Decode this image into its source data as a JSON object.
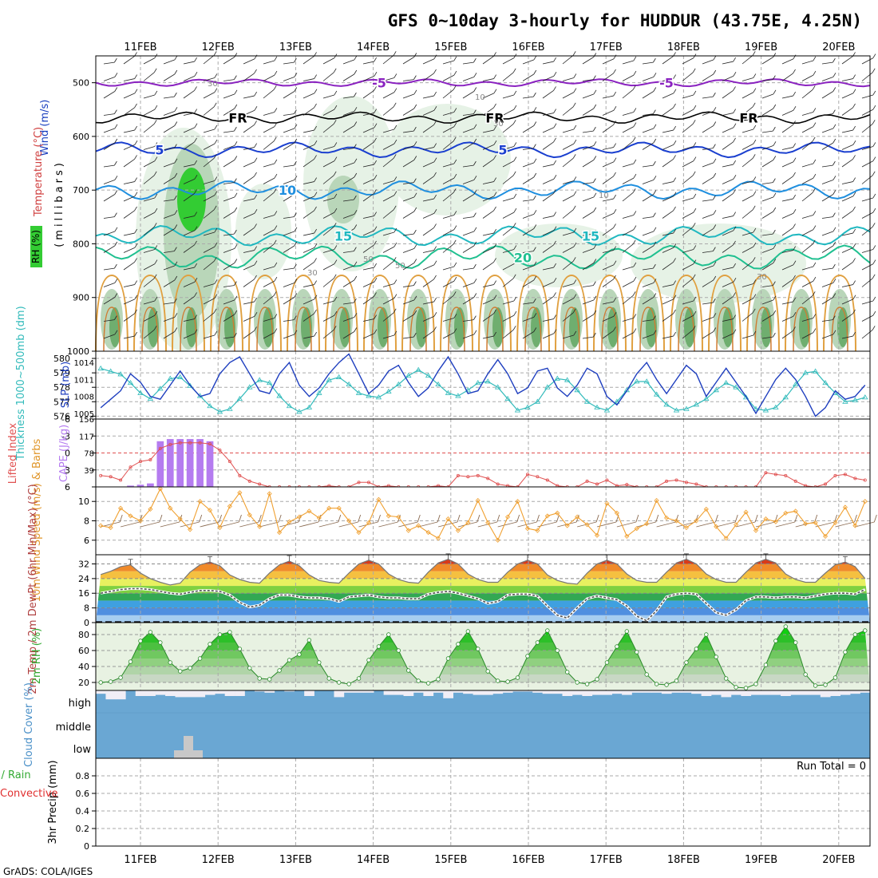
{
  "title": "GFS 0~10day 3-hourly for HUDDUR (43.75E, 4.25N)",
  "footer": "GrADS: COLA/IGES",
  "dates": [
    "11FEB",
    "12FEB",
    "13FEB",
    "14FEB",
    "15FEB",
    "16FEB",
    "17FEB",
    "18FEB",
    "19FEB",
    "20FEB"
  ],
  "colors": {
    "temp_grey": "#9a9a9a",
    "rh_light": "#e6f2e6",
    "rh_mid": "#b9d6b9",
    "rh_dark": "#6fae6f",
    "rh_bright": "#33cc33",
    "cloud_blue": "#6aa7d3",
    "cloud_white": "#f1eef6",
    "cape": "#b57cf0",
    "li": "#e05050",
    "wind_orange": "#f0a030",
    "barb_brown": "#8a6a50",
    "thick_cyan": "#33bbbb",
    "slp_blue": "#1f3fbf"
  },
  "chart_data": [
    {
      "panel": "upper-air",
      "type": "heatmap",
      "ylabels": [
        "Wind (m/s)",
        "Temperature (°C)",
        "RH (%)",
        "(millibars)"
      ],
      "yticks": [
        500,
        600,
        700,
        800,
        900,
        1000
      ],
      "ylim": [
        1000,
        450
      ],
      "isotherms": [
        {
          "label": "-5",
          "pressure": 500
        },
        {
          "label": "FR",
          "pressure": 565
        },
        {
          "label": "5",
          "pressure": 625
        },
        {
          "label": "10",
          "pressure": 700
        },
        {
          "label": "15",
          "pressure": 785
        },
        {
          "label": "20",
          "pressure": 825
        }
      ],
      "rh_labels": [
        "30",
        "10",
        "30",
        "10",
        "50",
        "30",
        "50",
        "30"
      ]
    },
    {
      "panel": "thickness-slp",
      "type": "line",
      "ylabel_left": "Thickness 1000~500mb (dm)",
      "ylabel_right": "SLP (mb)",
      "left_ticks": [
        576,
        577,
        578,
        579,
        580
      ],
      "right_ticks": [
        1005,
        1008,
        1011,
        1014
      ],
      "series": [
        {
          "name": "Thickness",
          "values": [
            579.3,
            579.1,
            578.9,
            578.3,
            577.6,
            577.2,
            577.9,
            578.6,
            578.7,
            578.1,
            577.4,
            576.7,
            576.3,
            576.5,
            577.2,
            578.0,
            578.5,
            578.3,
            577.4,
            576.7,
            576.3,
            576.6,
            577.6,
            578.5,
            578.7,
            578.2,
            577.6,
            577.4,
            577.3,
            577.7,
            578.2,
            578.8,
            579.2,
            578.8,
            578.2,
            577.6,
            577.4,
            577.8,
            578.3,
            578.4,
            578.0,
            577.2,
            576.4,
            576.6,
            577.0,
            578.0,
            578.6,
            578.5,
            577.8,
            577.0,
            576.6,
            576.4,
            577.0,
            577.8,
            578.4,
            578.4,
            577.5,
            576.8,
            576.4,
            576.5,
            576.8,
            577.2,
            577.8,
            578.3,
            578.0,
            577.3,
            576.5,
            576.4,
            576.6,
            577.3,
            578.2,
            579.0,
            579.1,
            578.3,
            577.6,
            577.0,
            577.1,
            577.3
          ]
        },
        {
          "name": "SLP",
          "values": [
            1006.0,
            1007.5,
            1009.0,
            1012.0,
            1010.5,
            1008.0,
            1007.5,
            1010.0,
            1012.5,
            1010.0,
            1008.0,
            1008.5,
            1012.0,
            1014.0,
            1015.0,
            1012.0,
            1009.0,
            1008.5,
            1012.0,
            1014.0,
            1010.0,
            1008.0,
            1009.5,
            1012.0,
            1014.0,
            1015.5,
            1012.0,
            1008.5,
            1010.0,
            1012.5,
            1013.5,
            1010.5,
            1008.0,
            1009.5,
            1012.5,
            1015.0,
            1012.0,
            1008.5,
            1009.0,
            1012.0,
            1014.5,
            1012.0,
            1008.5,
            1009.5,
            1012.5,
            1013.0,
            1009.5,
            1008.0,
            1010.0,
            1013.0,
            1012.0,
            1008.0,
            1006.5,
            1009.0,
            1012.0,
            1014.0,
            1011.0,
            1008.5,
            1011.0,
            1013.5,
            1012.0,
            1008.0,
            1010.5,
            1013.0,
            1010.5,
            1008.0,
            1005.0,
            1008.0,
            1011.0,
            1013.0,
            1011.0,
            1008.0,
            1004.5,
            1006.0,
            1009.0,
            1007.5,
            1008.0,
            1010.0
          ]
        }
      ]
    },
    {
      "panel": "li-cape",
      "type": "bar",
      "ylabel_left": "Lifted Index",
      "ylabel_right": "CAPE (J/kg)",
      "left_ticks": [
        "-6",
        "-3",
        "0",
        "3",
        "6"
      ],
      "right_ticks": [
        "39",
        "78",
        "117",
        "156"
      ],
      "cape_values": [
        0,
        0,
        0,
        3,
        5,
        8,
        105,
        110,
        110,
        110,
        110,
        105,
        0,
        0,
        0,
        0,
        0,
        0,
        0,
        0,
        0,
        0,
        0,
        0,
        0,
        0,
        0,
        0,
        0,
        0,
        0,
        0,
        0,
        0,
        2,
        0,
        0,
        0,
        0,
        0,
        0,
        0,
        0,
        0,
        0,
        0,
        0,
        0,
        0,
        0,
        0,
        0,
        0,
        0,
        0,
        0,
        0,
        0,
        0,
        0,
        0,
        0,
        0,
        0,
        0,
        0,
        0,
        0,
        0,
        0,
        0,
        0,
        0,
        0,
        0,
        0,
        0,
        0
      ],
      "li_values": [
        4.0,
        4.2,
        4.8,
        2.5,
        1.5,
        1.2,
        -0.8,
        -1.5,
        -1.8,
        -1.8,
        -1.8,
        -1.6,
        -0.5,
        1.5,
        4.0,
        5.0,
        5.5,
        6.0,
        6.0,
        6.0,
        6.0,
        6.0,
        6.0,
        5.8,
        6.0,
        6.0,
        5.2,
        5.2,
        6.0,
        5.8,
        6.0,
        6.0,
        6.0,
        6.0,
        5.8,
        6.0,
        4.0,
        4.2,
        4.0,
        4.5,
        5.5,
        5.8,
        6.0,
        3.8,
        4.2,
        4.8,
        5.8,
        6.0,
        6.0,
        5.0,
        5.5,
        4.8,
        5.8,
        5.6,
        6.0,
        6.0,
        6.0,
        5.0,
        4.8,
        5.2,
        5.5,
        6.0,
        6.0,
        6.0,
        6.0,
        6.0,
        6.0,
        3.5,
        3.8,
        4.0,
        5.0,
        5.8,
        6.0,
        5.5,
        4.0,
        3.8,
        4.5,
        4.8
      ]
    },
    {
      "panel": "10m-wind",
      "type": "line",
      "ylabel": "10m Wind Speed (m/s) & Barbs",
      "yticks": [
        6,
        8,
        10
      ],
      "ylim": [
        4.5,
        11.5
      ],
      "values": [
        7.5,
        7.3,
        9.3,
        8.5,
        8.0,
        9.2,
        11.3,
        9.3,
        8.2,
        7.1,
        10.0,
        9.1,
        7.3,
        9.5,
        10.9,
        8.6,
        7.4,
        10.8,
        6.8,
        7.9,
        8.4,
        9.0,
        8.3,
        9.3,
        9.3,
        8.0,
        6.8,
        7.8,
        10.2,
        8.5,
        8.4,
        7.0,
        7.5,
        6.8,
        6.2,
        8.2,
        7.0,
        7.8,
        10.1,
        7.8,
        6.0,
        8.4,
        10.0,
        7.2,
        7.0,
        8.5,
        8.8,
        7.5,
        8.4,
        7.6,
        6.5,
        9.8,
        8.8,
        6.4,
        7.2,
        7.7,
        10.1,
        8.3,
        8.0,
        7.3,
        8.0,
        9.2,
        7.4,
        6.2,
        7.6,
        8.9,
        7.0,
        8.2,
        7.9,
        8.8,
        9.0,
        7.7,
        7.8,
        6.4,
        7.8,
        9.4,
        7.5,
        10.0
      ]
    },
    {
      "panel": "2m-temp",
      "type": "area",
      "ylabel": "2m Temp / 2m DewPt (6hr Min/Max) (°C)",
      "yticks": [
        0,
        8,
        16,
        24,
        32
      ],
      "ylim": [
        0,
        37
      ],
      "temp_values": [
        26.2,
        28.0,
        30.5,
        31.5,
        27.0,
        24.0,
        22.0,
        20.5,
        21.5,
        27.5,
        31.5,
        33.0,
        31.0,
        26.0,
        23.5,
        22.0,
        21.5,
        27.0,
        31.5,
        33.5,
        31.0,
        26.0,
        23.0,
        22.0,
        21.5,
        27.0,
        32.0,
        34.0,
        32.0,
        26.5,
        23.5,
        22.0,
        21.5,
        27.5,
        32.5,
        34.5,
        32.0,
        26.5,
        23.5,
        22.0,
        22.0,
        27.5,
        32.0,
        34.0,
        32.0,
        26.0,
        23.0,
        21.5,
        21.0,
        27.0,
        32.0,
        34.0,
        32.0,
        26.5,
        23.0,
        22.0,
        22.0,
        27.5,
        32.5,
        34.5,
        32.0,
        26.5,
        23.5,
        22.0,
        22.0,
        27.5,
        32.5,
        34.5,
        32.5,
        26.5,
        23.5,
        22.0,
        22.0,
        27.0,
        31.5,
        33.0,
        30.5,
        24.0
      ],
      "dewpt_values": [
        16,
        17,
        18,
        18.5,
        18.5,
        18,
        17,
        16,
        15.5,
        16.5,
        17.5,
        17.5,
        17,
        15,
        11,
        8.5,
        9.5,
        13,
        15,
        15,
        14,
        13.5,
        13.5,
        13,
        11.5,
        14,
        14.5,
        15,
        14,
        13.5,
        13.5,
        13,
        13,
        15.5,
        16.5,
        17,
        16,
        14.5,
        13,
        10.5,
        11.5,
        15,
        15.5,
        15.5,
        14.5,
        9,
        4,
        2.5,
        8,
        13,
        14.5,
        13.5,
        12.5,
        9,
        3.5,
        1,
        6.5,
        14,
        15.5,
        16,
        15.5,
        10.5,
        5.5,
        4,
        7,
        12,
        14,
        14,
        13.5,
        14,
        14,
        13.5,
        14.5,
        15.5,
        16,
        16,
        15.5,
        18
      ]
    },
    {
      "panel": "2m-rh",
      "type": "area",
      "ylabel": "2m RH (%)",
      "yticks": [
        20,
        40,
        60,
        80
      ],
      "ylim": [
        10,
        95
      ],
      "values": [
        20,
        21,
        26,
        46,
        72,
        83,
        70,
        45,
        34,
        38,
        50,
        68,
        80,
        83,
        62,
        38,
        25,
        24,
        35,
        48,
        55,
        73,
        45,
        25,
        20,
        18,
        25,
        48,
        65,
        80,
        60,
        35,
        22,
        19,
        24,
        50,
        68,
        84,
        62,
        34,
        22,
        21,
        26,
        53,
        70,
        85,
        60,
        33,
        20,
        18,
        24,
        45,
        65,
        84,
        58,
        30,
        18,
        17,
        22,
        45,
        62,
        80,
        52,
        25,
        14,
        13,
        18,
        42,
        72,
        90,
        70,
        30,
        16,
        17,
        26,
        58,
        80,
        85
      ]
    },
    {
      "panel": "cloud-cover",
      "type": "bar",
      "ylabel": "Cloud Cover (%)",
      "yticks": [
        "high",
        "middle",
        "low"
      ],
      "high_values": [
        85,
        60,
        60,
        100,
        75,
        75,
        80,
        75,
        70,
        70,
        70,
        80,
        85,
        75,
        75,
        100,
        95,
        90,
        100,
        95,
        100,
        75,
        100,
        100,
        70,
        90,
        90,
        90,
        100,
        80,
        80,
        75,
        90,
        75,
        90,
        65,
        90,
        85,
        80,
        80,
        85,
        90,
        95,
        95,
        90,
        85,
        85,
        75,
        80,
        75,
        80,
        80,
        85,
        80,
        90,
        90,
        90,
        85,
        90,
        90,
        85,
        75,
        80,
        70,
        80,
        75,
        80,
        80,
        80,
        75,
        80,
        80,
        80,
        70,
        75,
        80,
        85,
        90
      ],
      "low_values": [
        0,
        0,
        0,
        0,
        0,
        0,
        0,
        0,
        0,
        0,
        0,
        0,
        0,
        0,
        0,
        0,
        0,
        0,
        0,
        0,
        0,
        0,
        0,
        0,
        0,
        0,
        0,
        0,
        0,
        0,
        0,
        0,
        0,
        0,
        0,
        0,
        0,
        0,
        0,
        0,
        0,
        0,
        0,
        0,
        0,
        0,
        0,
        0,
        0,
        0,
        0,
        0,
        0,
        0,
        0,
        0,
        0,
        0,
        0,
        0,
        0,
        0,
        0,
        0,
        0,
        0,
        0,
        0,
        0,
        0,
        0,
        0,
        0,
        0,
        0,
        0,
        0,
        0
      ]
    },
    {
      "panel": "precip",
      "type": "bar",
      "ylabel": "3hr Precip (mm)",
      "legend": [
        "Total / Rain",
        "Convective"
      ],
      "run_total": "Run Total = 0",
      "yticks": [
        "0",
        "0.2",
        "0.4",
        "0.6",
        "0.8"
      ],
      "ylim": [
        0,
        1
      ],
      "values": []
    }
  ]
}
